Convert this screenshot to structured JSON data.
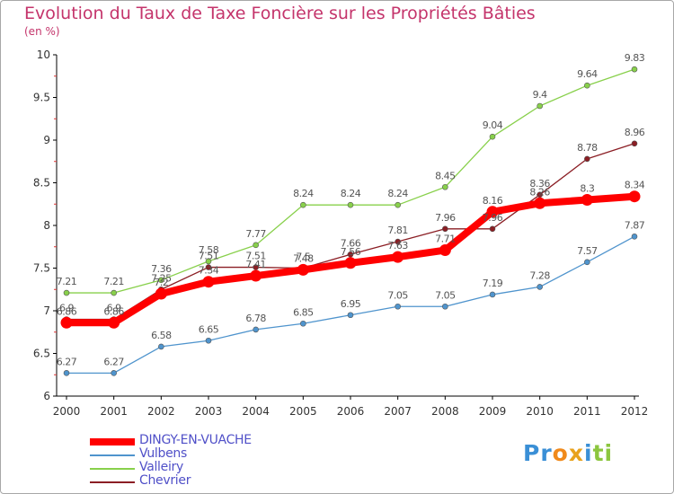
{
  "header": {
    "title": "Evolution du Taux de Taxe Foncière sur les Propriétés Bâties",
    "subtitle": "(en %)"
  },
  "logo": {
    "letters": [
      {
        "ch": "P",
        "color": "#3a8fd6"
      },
      {
        "ch": "r",
        "color": "#3a8fd6"
      },
      {
        "ch": "o",
        "color": "#f08a1c"
      },
      {
        "ch": "x",
        "color": "#e8a21c"
      },
      {
        "ch": "i",
        "color": "#3a8fd6"
      },
      {
        "ch": "t",
        "color": "#8cc63f"
      },
      {
        "ch": "i",
        "color": "#8cc63f"
      }
    ]
  },
  "chart_data": {
    "type": "line",
    "title": "Evolution du Taux de Taxe Foncière sur les Propriétés Bâties",
    "ylabel": "(en %)",
    "xlabel": "",
    "ylim": [
      6,
      10
    ],
    "yticks": [
      "6",
      "6.5",
      "7",
      "7.5",
      "8",
      "8.5",
      "9",
      "9.5",
      "10"
    ],
    "x": [
      "2000",
      "2001",
      "2002",
      "2003",
      "2004",
      "2005",
      "2006",
      "2007",
      "2008",
      "2009",
      "2010",
      "2011",
      "2012"
    ],
    "grid": false,
    "legend_position": "bottom-left",
    "series": [
      {
        "name": "DINGY-EN-VUACHE",
        "color": "#ff0000",
        "thick": true,
        "values": [
          6.86,
          6.86,
          7.2,
          7.34,
          7.41,
          7.48,
          7.56,
          7.63,
          7.71,
          8.16,
          8.26,
          8.3,
          8.34
        ],
        "labels": [
          "6.86",
          "6.86",
          "7.2",
          "7.34",
          "7.41",
          "7.48",
          "7.56",
          "7.63",
          "7.71",
          "8.16",
          "8.26",
          "8.3",
          "8.34"
        ]
      },
      {
        "name": "Vulbens",
        "color": "#4f94cd",
        "thick": false,
        "values": [
          6.27,
          6.27,
          6.58,
          6.65,
          6.78,
          6.85,
          6.95,
          7.05,
          7.05,
          7.19,
          7.28,
          7.57,
          7.87
        ],
        "labels": [
          "6.27",
          "6.27",
          "6.58",
          "6.65",
          "6.78",
          "6.85",
          "6.95",
          "7.05",
          "7.05",
          "7.19",
          "7.28",
          "7.57",
          "7.87"
        ]
      },
      {
        "name": "Valleiry",
        "color": "#88d04b",
        "thick": false,
        "values": [
          7.21,
          7.21,
          7.36,
          7.58,
          7.77,
          8.24,
          8.24,
          8.24,
          8.45,
          9.04,
          9.4,
          9.64,
          9.83
        ],
        "labels": [
          "7.21",
          "7.21",
          "7.36",
          "7.58",
          "7.77",
          "8.24",
          "8.24",
          "8.24",
          "8.45",
          "9.04",
          "9.4",
          "9.64",
          "9.83"
        ]
      },
      {
        "name": "Chevrier",
        "color": "#8b1e24",
        "thick": false,
        "values": [
          6.9,
          6.9,
          7.25,
          7.51,
          7.51,
          7.5,
          7.66,
          7.81,
          7.96,
          7.96,
          8.36,
          8.78,
          8.96
        ],
        "labels": [
          "6.9",
          "6.9",
          "7.25",
          "7.51",
          "7.51",
          "7.5",
          "7.66",
          "7.81",
          "7.96",
          "7.96",
          "8.36",
          "8.78",
          "8.96"
        ]
      }
    ]
  }
}
